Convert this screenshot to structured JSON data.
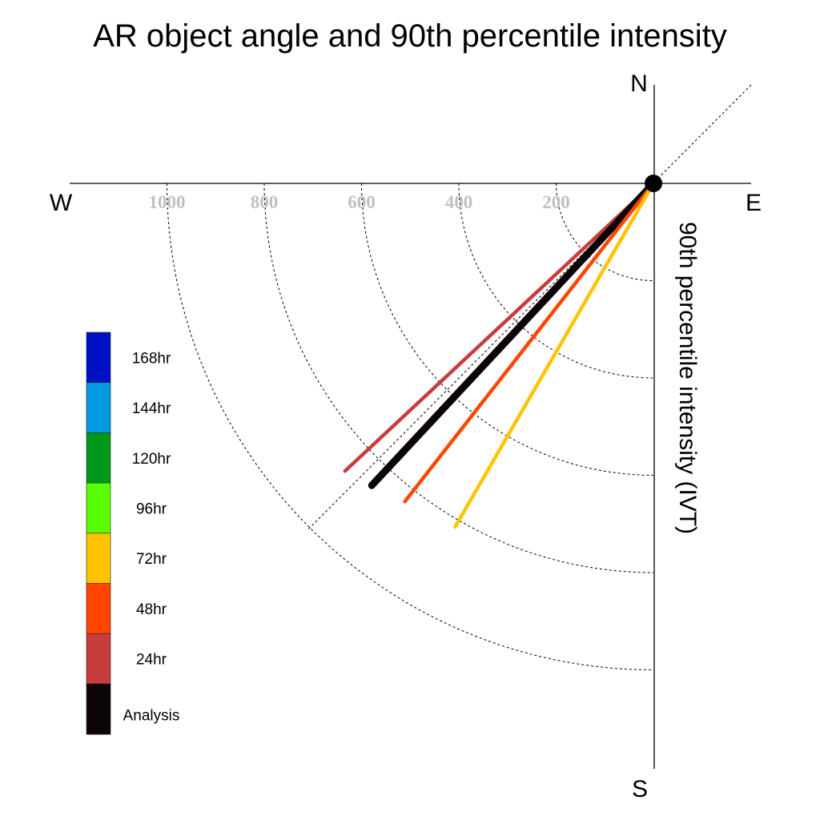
{
  "chart_data": {
    "type": "polar-vector",
    "title": "AR object angle and 90th percentile intensity",
    "axis_label": "90th percentile intensity (IVT)",
    "compass": {
      "north": "N",
      "south": "S",
      "east": "E",
      "west": "W"
    },
    "rings": [
      200,
      400,
      600,
      800,
      1000
    ],
    "ring_labels": [
      "200",
      "400",
      "600",
      "800",
      "1000"
    ],
    "rlim": [
      0,
      1000
    ],
    "grid": true,
    "legend_placement": "left",
    "legend": [
      {
        "label": "168hr",
        "color": "#0010c4"
      },
      {
        "label": "144hr",
        "color": "#009ade"
      },
      {
        "label": "120hr",
        "color": "#00991a"
      },
      {
        "label": "96hr",
        "color": "#59ff00"
      },
      {
        "label": "72hr",
        "color": "#ffc400"
      },
      {
        "label": "48hr",
        "color": "#ff4500"
      },
      {
        "label": "24hr",
        "color": "#c83c3c"
      },
      {
        "label": "Analysis",
        "color": "#0c0408"
      }
    ],
    "series": [
      {
        "name": "24hr",
        "angle_deg": 227,
        "magnitude": 867,
        "color": "#c83c3c"
      },
      {
        "name": "Analysis",
        "angle_deg": 223,
        "magnitude": 849,
        "color": "#0c0408"
      },
      {
        "name": "48hr",
        "angle_deg": 218,
        "magnitude": 830,
        "color": "#ff4500"
      },
      {
        "name": "72hr",
        "angle_deg": 210,
        "magnitude": 815,
        "color": "#ffc400"
      }
    ]
  }
}
